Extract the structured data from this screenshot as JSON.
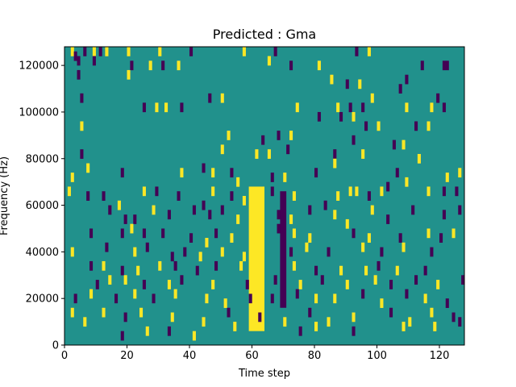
{
  "chart_data": {
    "type": "heatmap",
    "title": "Predicted : Gma",
    "xlabel": "Time step",
    "ylabel": "Frequency (Hz)",
    "xlim": [
      0,
      128
    ],
    "ylim": [
      0,
      128000
    ],
    "x_ticks": [
      0,
      20,
      40,
      60,
      80,
      100,
      120
    ],
    "x_tick_labels": [
      "0",
      "20",
      "40",
      "60",
      "80",
      "100",
      "120"
    ],
    "y_ticks": [
      0,
      20000,
      40000,
      60000,
      80000,
      100000,
      120000
    ],
    "y_tick_labels": [
      "0",
      "20000",
      "40000",
      "60000",
      "80000",
      "100000",
      "120000"
    ],
    "grid": false,
    "colormap": "viridis",
    "colors": {
      "background_class": "#21918c",
      "high_class": "#fde725",
      "low_class": "#440154"
    },
    "rows": 32,
    "cols": 128,
    "background_value": 0.5,
    "bright_band": {
      "time_start": 59,
      "time_end": 64,
      "freq_start": 6000,
      "freq_end": 68000,
      "value": 1
    },
    "dark_band": {
      "time_start": 69,
      "time_end": 71,
      "freq_start": 16000,
      "freq_end": 66000,
      "value": 0
    },
    "cells": [
      [
        2,
        124000,
        1
      ],
      [
        3,
        122000,
        0
      ],
      [
        6,
        124000,
        0
      ],
      [
        9,
        124000,
        1
      ],
      [
        11,
        124000,
        0
      ],
      [
        13,
        124000,
        1
      ],
      [
        20,
        124000,
        1
      ],
      [
        30,
        124000,
        1
      ],
      [
        40,
        124000,
        0
      ],
      [
        57,
        124000,
        1
      ],
      [
        67,
        124000,
        0
      ],
      [
        93,
        124000,
        0
      ],
      [
        97,
        124000,
        1
      ],
      [
        4,
        120000,
        0
      ],
      [
        9,
        120000,
        0
      ],
      [
        21,
        118000,
        0
      ],
      [
        27,
        118000,
        1
      ],
      [
        31,
        118000,
        0
      ],
      [
        36,
        118000,
        1
      ],
      [
        65,
        120000,
        1
      ],
      [
        72,
        118000,
        0
      ],
      [
        81,
        118000,
        1
      ],
      [
        114,
        118000,
        0
      ],
      [
        121,
        118000,
        0
      ],
      [
        122,
        118000,
        0
      ],
      [
        4,
        114000,
        0
      ],
      [
        20,
        114000,
        1
      ],
      [
        85,
        112000,
        1
      ],
      [
        90,
        110000,
        0
      ],
      [
        94,
        110000,
        1
      ],
      [
        107,
        108000,
        0
      ],
      [
        109,
        112000,
        0
      ],
      [
        5,
        104000,
        0
      ],
      [
        46,
        104000,
        0
      ],
      [
        50,
        104000,
        1
      ],
      [
        98,
        104000,
        1
      ],
      [
        119,
        104000,
        0
      ],
      [
        25,
        100000,
        0
      ],
      [
        29,
        100000,
        1
      ],
      [
        32,
        100000,
        1
      ],
      [
        37,
        100000,
        0
      ],
      [
        74,
        100000,
        1
      ],
      [
        87,
        100000,
        1
      ],
      [
        91,
        100000,
        0
      ],
      [
        95,
        100000,
        0
      ],
      [
        109,
        100000,
        1
      ],
      [
        117,
        100000,
        1
      ],
      [
        121,
        100000,
        0
      ],
      [
        5,
        92000,
        1
      ],
      [
        81,
        96000,
        0
      ],
      [
        88,
        96000,
        0
      ],
      [
        92,
        96000,
        1
      ],
      [
        96,
        92000,
        0
      ],
      [
        100,
        92000,
        1
      ],
      [
        112,
        92000,
        0
      ],
      [
        116,
        92000,
        1
      ],
      [
        52,
        88000,
        1
      ],
      [
        63,
        86000,
        0
      ],
      [
        68,
        88000,
        0
      ],
      [
        72,
        88000,
        1
      ],
      [
        92,
        86000,
        0
      ],
      [
        5,
        80000,
        0
      ],
      [
        50,
        82000,
        1
      ],
      [
        61,
        80000,
        1
      ],
      [
        65,
        80000,
        1
      ],
      [
        71,
        82000,
        0
      ],
      [
        86,
        80000,
        0
      ],
      [
        95,
        80000,
        1
      ],
      [
        105,
        84000,
        0
      ],
      [
        108,
        84000,
        1
      ],
      [
        113,
        78000,
        1
      ],
      [
        2,
        70000,
        1
      ],
      [
        7,
        74000,
        1
      ],
      [
        18,
        72000,
        0
      ],
      [
        37,
        72000,
        1
      ],
      [
        44,
        74000,
        0
      ],
      [
        47,
        72000,
        1
      ],
      [
        53,
        72000,
        0
      ],
      [
        55,
        68000,
        1
      ],
      [
        66,
        70000,
        0
      ],
      [
        70,
        70000,
        1
      ],
      [
        80,
        72000,
        0
      ],
      [
        86,
        76000,
        1
      ],
      [
        106,
        72000,
        0
      ],
      [
        109,
        68000,
        1
      ],
      [
        122,
        70000,
        1
      ],
      [
        126,
        72000,
        1
      ],
      [
        1,
        64000,
        1
      ],
      [
        7,
        62000,
        0
      ],
      [
        12,
        62000,
        0
      ],
      [
        17,
        58000,
        1
      ],
      [
        25,
        64000,
        1
      ],
      [
        29,
        64000,
        0
      ],
      [
        36,
        62000,
        0
      ],
      [
        44,
        58000,
        0
      ],
      [
        47,
        64000,
        1
      ],
      [
        53,
        62000,
        0
      ],
      [
        57,
        60000,
        1
      ],
      [
        66,
        64000,
        0
      ],
      [
        73,
        62000,
        1
      ],
      [
        83,
        58000,
        0
      ],
      [
        87,
        62000,
        1
      ],
      [
        91,
        64000,
        1
      ],
      [
        93,
        64000,
        1
      ],
      [
        97,
        62000,
        0
      ],
      [
        101,
        64000,
        1
      ],
      [
        103,
        66000,
        0
      ],
      [
        116,
        64000,
        1
      ],
      [
        121,
        64000,
        0
      ],
      [
        125,
        64000,
        0
      ],
      [
        14,
        56000,
        0
      ],
      [
        19,
        52000,
        0
      ],
      [
        22,
        52000,
        0
      ],
      [
        28,
        56000,
        1
      ],
      [
        33,
        54000,
        0
      ],
      [
        41,
        56000,
        0
      ],
      [
        46,
        54000,
        0
      ],
      [
        50,
        56000,
        0
      ],
      [
        55,
        52000,
        1
      ],
      [
        68,
        54000,
        0
      ],
      [
        72,
        52000,
        1
      ],
      [
        78,
        56000,
        0
      ],
      [
        86,
        54000,
        1
      ],
      [
        90,
        50000,
        1
      ],
      [
        98,
        56000,
        1
      ],
      [
        103,
        52000,
        0
      ],
      [
        111,
        56000,
        0
      ],
      [
        121,
        54000,
        0
      ],
      [
        126,
        56000,
        0
      ],
      [
        8,
        46000,
        0
      ],
      [
        18,
        46000,
        0
      ],
      [
        21,
        48000,
        1
      ],
      [
        25,
        46000,
        0
      ],
      [
        31,
        46000,
        0
      ],
      [
        40,
        44000,
        0
      ],
      [
        45,
        42000,
        1
      ],
      [
        48,
        46000,
        0
      ],
      [
        53,
        44000,
        1
      ],
      [
        68,
        48000,
        0
      ],
      [
        73,
        46000,
        1
      ],
      [
        78,
        44000,
        1
      ],
      [
        92,
        46000,
        0
      ],
      [
        97,
        44000,
        1
      ],
      [
        107,
        44000,
        0
      ],
      [
        116,
        46000,
        1
      ],
      [
        120,
        44000,
        0
      ],
      [
        124,
        46000,
        1
      ],
      [
        2,
        38000,
        1
      ],
      [
        13,
        40000,
        0
      ],
      [
        22,
        38000,
        1
      ],
      [
        26,
        40000,
        0
      ],
      [
        34,
        36000,
        0
      ],
      [
        38,
        38000,
        0
      ],
      [
        43,
        36000,
        1
      ],
      [
        50,
        38000,
        1
      ],
      [
        57,
        36000,
        1
      ],
      [
        72,
        38000,
        0
      ],
      [
        77,
        40000,
        1
      ],
      [
        84,
        38000,
        0
      ],
      [
        95,
        40000,
        1
      ],
      [
        101,
        38000,
        0
      ],
      [
        108,
        40000,
        1
      ],
      [
        117,
        38000,
        0
      ],
      [
        8,
        32000,
        0
      ],
      [
        12,
        32000,
        1
      ],
      [
        18,
        30000,
        0
      ],
      [
        23,
        30000,
        1
      ],
      [
        30,
        32000,
        1
      ],
      [
        35,
        32000,
        0
      ],
      [
        42,
        30000,
        0
      ],
      [
        48,
        32000,
        0
      ],
      [
        56,
        32000,
        1
      ],
      [
        73,
        32000,
        1
      ],
      [
        80,
        30000,
        0
      ],
      [
        88,
        30000,
        1
      ],
      [
        96,
        30000,
        1
      ],
      [
        100,
        32000,
        0
      ],
      [
        106,
        30000,
        1
      ],
      [
        115,
        30000,
        0
      ],
      [
        10,
        24000,
        0
      ],
      [
        14,
        26000,
        1
      ],
      [
        19,
        26000,
        1
      ],
      [
        25,
        24000,
        0
      ],
      [
        33,
        24000,
        1
      ],
      [
        37,
        26000,
        0
      ],
      [
        47,
        24000,
        1
      ],
      [
        58,
        24000,
        0
      ],
      [
        67,
        26000,
        0
      ],
      [
        75,
        24000,
        1
      ],
      [
        82,
        26000,
        0
      ],
      [
        90,
        24000,
        1
      ],
      [
        99,
        26000,
        1
      ],
      [
        104,
        24000,
        0
      ],
      [
        112,
        26000,
        0
      ],
      [
        119,
        24000,
        1
      ],
      [
        127,
        26000,
        0
      ],
      [
        3,
        18000,
        0
      ],
      [
        8,
        20000,
        1
      ],
      [
        16,
        18000,
        0
      ],
      [
        22,
        20000,
        1
      ],
      [
        28,
        18000,
        0
      ],
      [
        35,
        20000,
        1
      ],
      [
        45,
        18000,
        1
      ],
      [
        51,
        16000,
        1
      ],
      [
        59,
        18000,
        0
      ],
      [
        66,
        18000,
        0
      ],
      [
        74,
        20000,
        0
      ],
      [
        80,
        18000,
        1
      ],
      [
        86,
        18000,
        1
      ],
      [
        95,
        20000,
        0
      ],
      [
        101,
        16000,
        1
      ],
      [
        109,
        20000,
        0
      ],
      [
        115,
        18000,
        1
      ],
      [
        122,
        16000,
        0
      ],
      [
        2,
        12000,
        1
      ],
      [
        6,
        8000,
        1
      ],
      [
        12,
        12000,
        1
      ],
      [
        19,
        10000,
        0
      ],
      [
        24,
        12000,
        1
      ],
      [
        34,
        10000,
        1
      ],
      [
        44,
        8000,
        1
      ],
      [
        52,
        12000,
        0
      ],
      [
        62,
        10000,
        0
      ],
      [
        70,
        8000,
        1
      ],
      [
        78,
        12000,
        0
      ],
      [
        84,
        8000,
        1
      ],
      [
        92,
        10000,
        1
      ],
      [
        104,
        12000,
        0
      ],
      [
        110,
        8000,
        1
      ],
      [
        117,
        12000,
        1
      ],
      [
        124,
        10000,
        0
      ],
      [
        18,
        2000,
        0
      ],
      [
        26,
        4000,
        1
      ],
      [
        33,
        4000,
        0
      ],
      [
        41,
        2000,
        1
      ],
      [
        54,
        6000,
        1
      ],
      [
        75,
        4000,
        0
      ],
      [
        80,
        6000,
        1
      ],
      [
        92,
        4000,
        0
      ],
      [
        108,
        6000,
        1
      ],
      [
        118,
        6000,
        1
      ],
      [
        126,
        8000,
        0
      ]
    ]
  }
}
